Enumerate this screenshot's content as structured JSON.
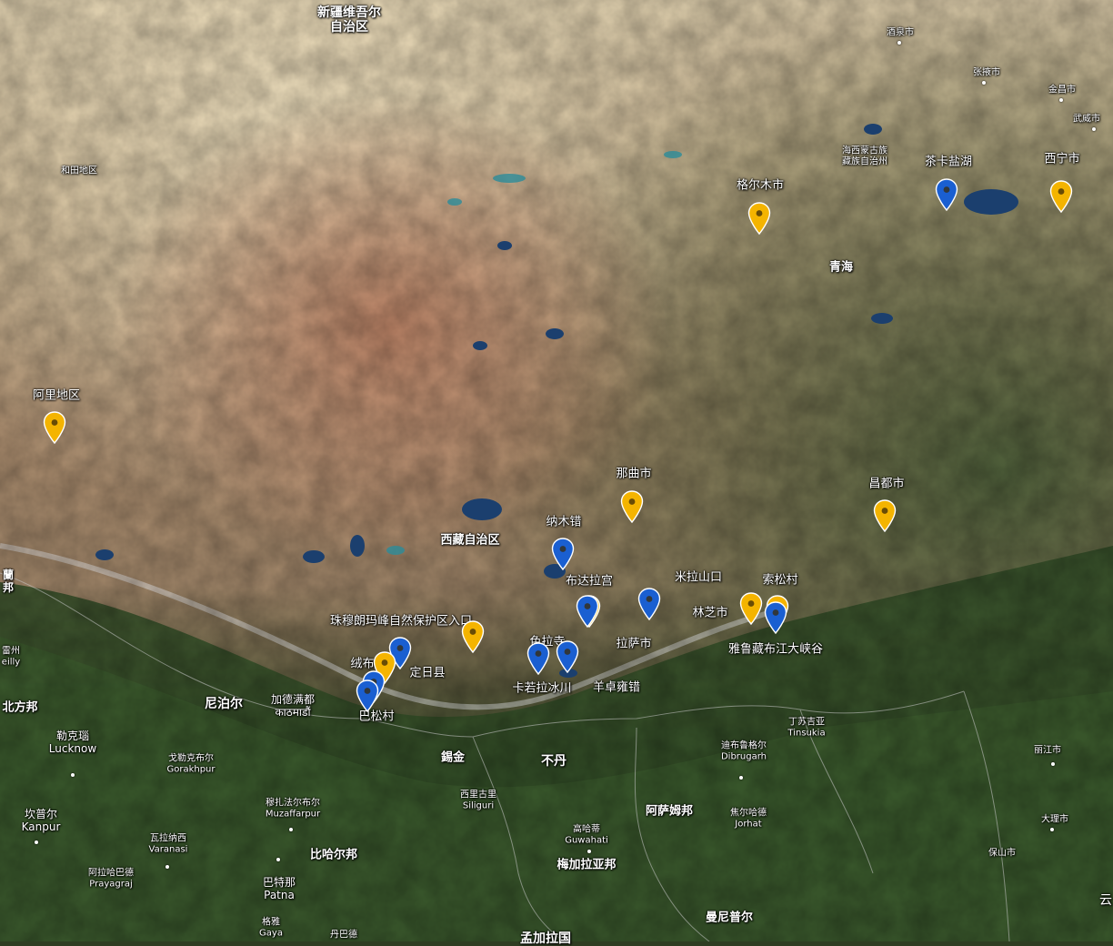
{
  "labels": {
    "xinjiang": "新疆维吾尔\n自治区",
    "jiuquan": "酒泉市",
    "zhangye": "张掖市",
    "jinchang": "金昌市",
    "wuwei": "武威市",
    "hetian": "和田地区",
    "haixi": "海西蒙古族\n藏族自治州",
    "chaka": "茶卡盐湖",
    "xining": "西宁市",
    "geermu": "格尔木市",
    "qinghai": "青海",
    "ali": "阿里地区",
    "naqu": "那曲市",
    "changdu": "昌都市",
    "namucuo": "纳木错",
    "xizang": "西藏自治区",
    "budala": "布达拉宫",
    "milashan": "米拉山口",
    "suosong": "索松村",
    "linzhi": "林芝市",
    "yaluzangbu": "雅鲁藏布江大峡谷",
    "zhumulangma": "珠穆朗玛峰自然保护区入口",
    "sela": "色拉寺",
    "lasa": "拉萨市",
    "rongbu": "绒布寺",
    "dingri": "定日县",
    "kagela": "卡若拉冰川",
    "yangzhuo": "羊卓雍错",
    "niboer": "尼泊尔",
    "jiademan": "加德满都\nकाठमाडौं",
    "basong": "巴松村",
    "lanbi": "蘭\n邦",
    "leizhou": "雷州\neilly",
    "beifang": "北方邦",
    "lekenao": "勒克瑙\nLucknow",
    "geleke": "戈勒克布尔\nGorakhpur",
    "kanpuer": "坎普尔\nKanpur",
    "mozhafa": "穆扎法尔布尔\nMuzaffarpur",
    "wala": "瓦拉纳西\nVaranasi",
    "apola": "阿拉哈巴德\nPrayagraj",
    "bihaer": "比哈尔邦",
    "batena": "巴特那\nPatna",
    "geya": "格雅\nGaya",
    "danba": "丹巴德",
    "xijin": "錫金",
    "budan": "不丹",
    "xiligu": "西里古里\nSiliguri",
    "asamu": "阿萨姆邦",
    "gaohati": "高哈蒂\nGuwahati",
    "meijia": "梅加拉亚邦",
    "diburu": "迪布鲁格尔\nDibrugarh",
    "dingsuji": "丁苏吉亚\nTinsukia",
    "jiaoerhade": "焦尔哈德\nJorhat",
    "manipuer": "曼尼普尔",
    "lijiang": "丽江市",
    "dali": "大理市",
    "baoshan": "保山市",
    "yun": "云",
    "mengjia": "孟加拉国",
    "gansu_edge": "甘",
    "xining_small": "西宁市"
  },
  "pins": {
    "orange_color": "#f4b400",
    "blue_color": "#1a5fd1",
    "icons": "map-marker-icon"
  }
}
